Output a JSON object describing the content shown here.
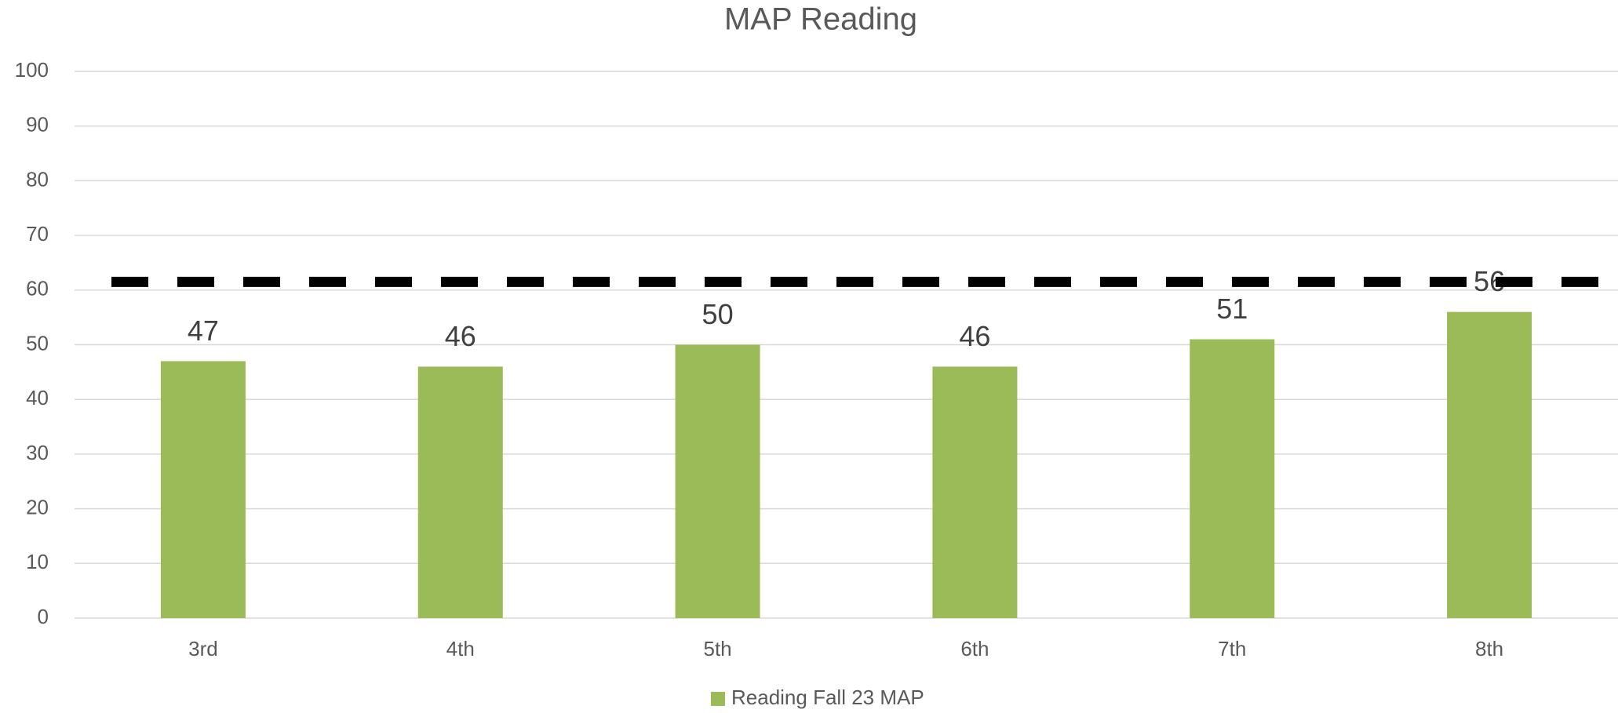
{
  "chart_data": {
    "type": "bar",
    "title": "MAP Reading",
    "categories": [
      "3rd",
      "4th",
      "5th",
      "6th",
      "7th",
      "8th"
    ],
    "series": [
      {
        "name": "Reading Fall 23 MAP",
        "color": "#9bbb59",
        "values": [
          47,
          46,
          50,
          46,
          51,
          56
        ]
      }
    ],
    "ylim": [
      0,
      100
    ],
    "yticks": [
      0,
      10,
      20,
      30,
      40,
      50,
      60,
      70,
      80,
      90,
      100
    ],
    "grid": true,
    "reference_line": {
      "value": 61.5,
      "color": "#000000",
      "dashed": true
    },
    "legend": "bottom"
  }
}
